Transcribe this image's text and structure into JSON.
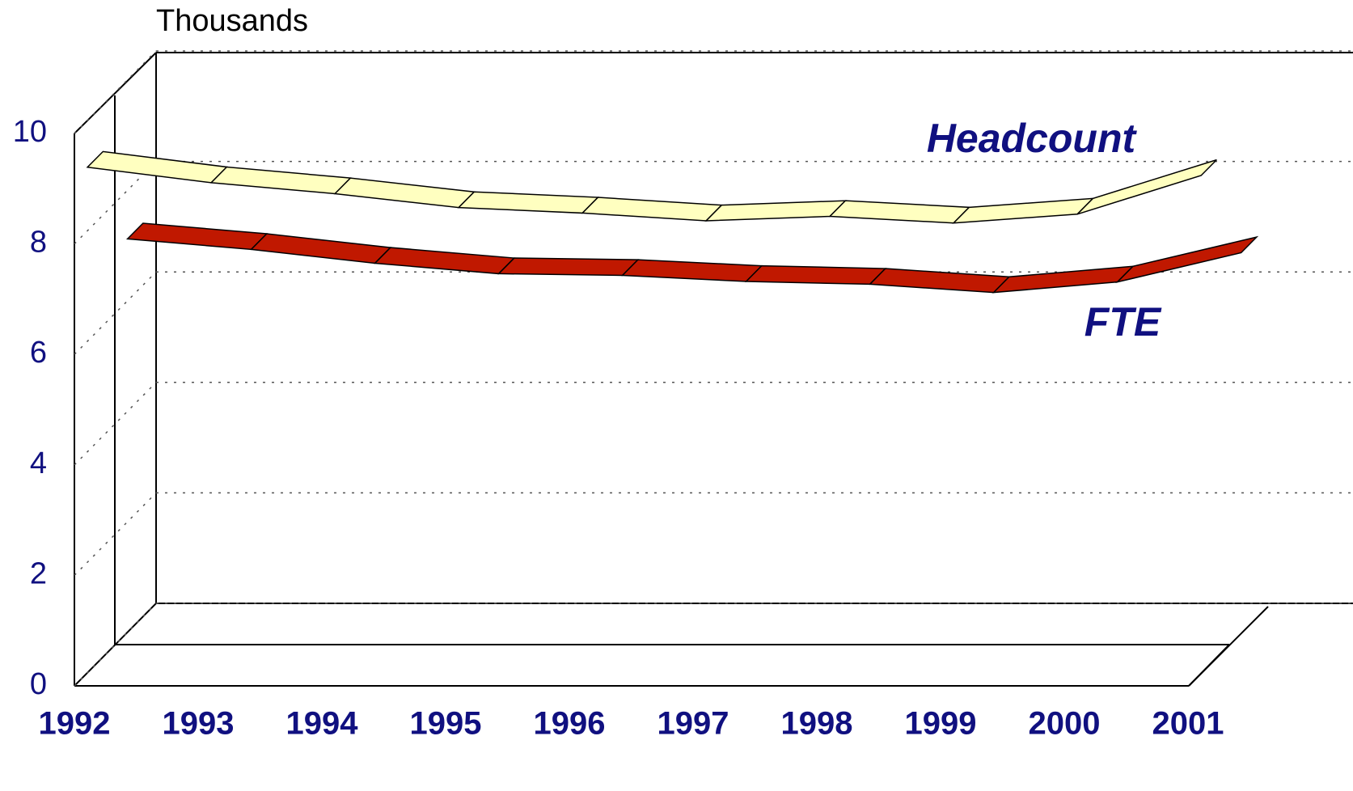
{
  "chart_data": {
    "type": "line",
    "y_label": "Thousands",
    "categories": [
      "1992",
      "1993",
      "1994",
      "1995",
      "1996",
      "1997",
      "1998",
      "1999",
      "2000",
      "2001"
    ],
    "series": [
      {
        "name": "Headcount",
        "color": "#ffffc0",
        "values": [
          9.15,
          8.87,
          8.67,
          8.42,
          8.32,
          8.18,
          8.26,
          8.14,
          8.3,
          9.0
        ]
      },
      {
        "name": "FTE",
        "color": "#c01800",
        "values": [
          7.12,
          6.93,
          6.68,
          6.49,
          6.46,
          6.35,
          6.3,
          6.15,
          6.34,
          6.87
        ]
      }
    ],
    "ylim": [
      0,
      10
    ],
    "yticks": [
      0,
      2,
      4,
      6,
      8,
      10
    ],
    "grid": true
  }
}
